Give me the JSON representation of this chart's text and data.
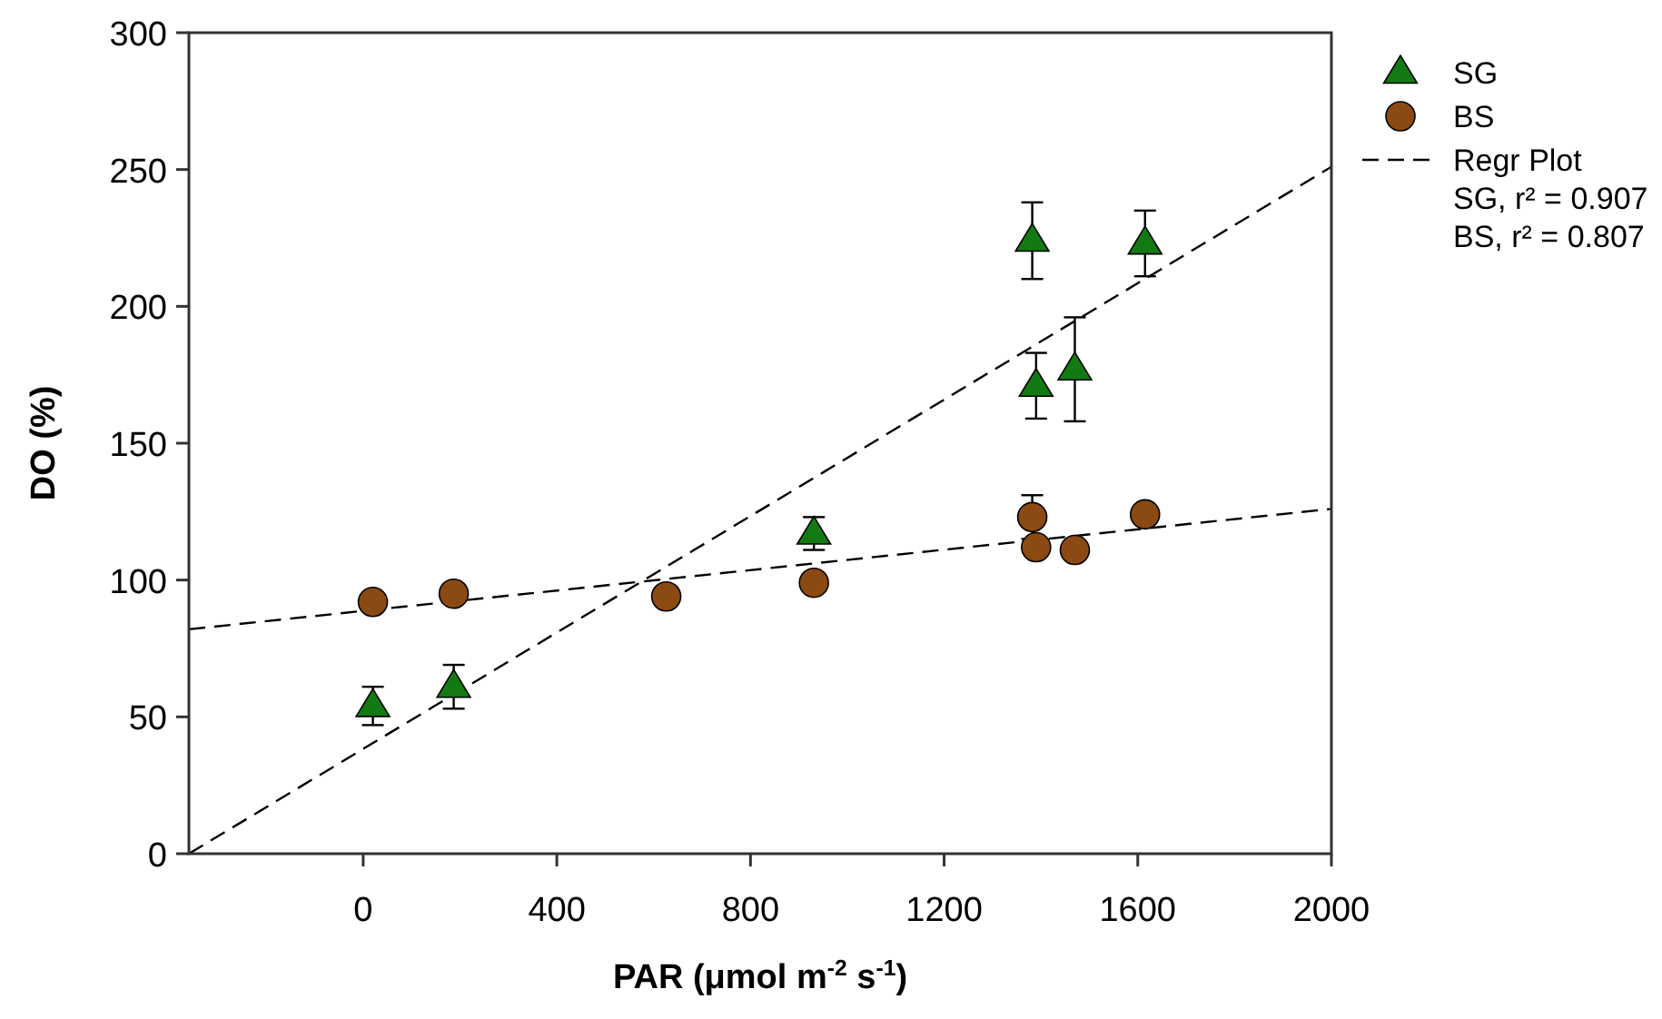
{
  "chart_data": {
    "type": "scatter",
    "xlabel": "PAR (μmol m$^{-2}$ s$^{-1}$)",
    "ylabel": "DO (%)",
    "xlim": [
      -360,
      2000
    ],
    "xticks": [
      0,
      400,
      800,
      1200,
      1600,
      2000
    ],
    "ylim": [
      0,
      300
    ],
    "yticks": [
      0,
      50,
      100,
      150,
      200,
      250,
      300
    ],
    "grid": false,
    "legend": "right",
    "series": [
      {
        "name": "SG",
        "marker": "triangle",
        "color": "#137a13",
        "x": [
          20,
          187,
          931,
          1382,
          1390,
          1470,
          1615
        ],
        "values": [
          54,
          61,
          117,
          224,
          171,
          177,
          223
        ],
        "errors": [
          7,
          8,
          6,
          14,
          12,
          19,
          12
        ]
      },
      {
        "name": "BS",
        "marker": "circle",
        "color": "#8b4a12",
        "x": [
          20,
          187,
          626,
          931,
          1382,
          1390,
          1470,
          1615
        ],
        "values": [
          92,
          95,
          94,
          99,
          123,
          112,
          111,
          124
        ],
        "errors": [
          null,
          null,
          null,
          null,
          8,
          null,
          null,
          null
        ]
      },
      {
        "name": "Regr Plot",
        "type": "line",
        "line_style": "dashed",
        "color": "#000000",
        "x": [
          -360,
          2000
        ],
        "values": [
          0,
          251
        ]
      },
      {
        "type": "line",
        "line_style": "dashed",
        "color": "#000000",
        "x": [
          -360,
          2000
        ],
        "values": [
          82,
          126
        ]
      }
    ],
    "annotations": [
      "SG, r² = 0.907",
      "BS, r² = 0.807"
    ]
  }
}
